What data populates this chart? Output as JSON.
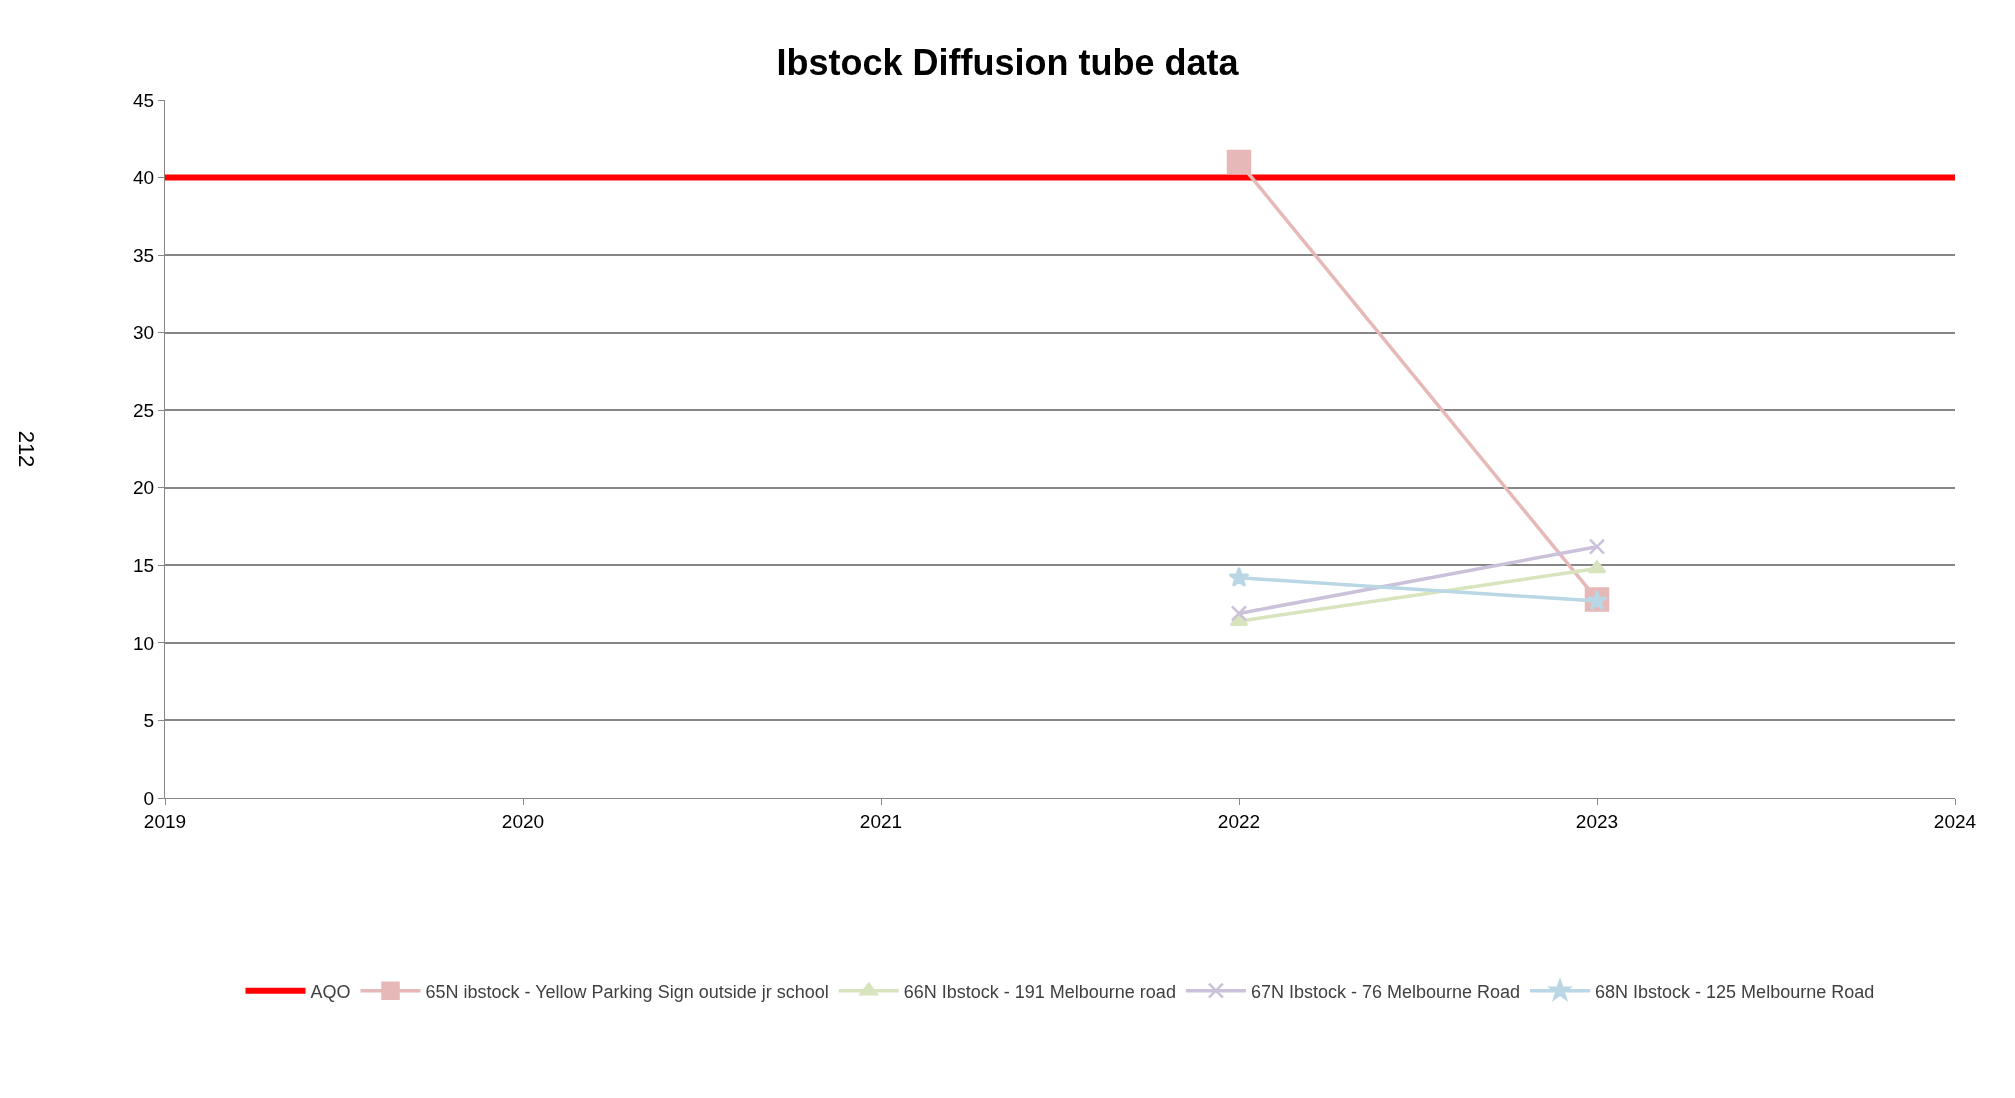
{
  "chart_data": {
    "type": "line",
    "title": "Ibstock Diffusion tube data",
    "x": [
      2019,
      2020,
      2021,
      2022,
      2023,
      2024
    ],
    "series": [
      {
        "name": "AQO",
        "color": "#ff0000",
        "marker": "none",
        "values": [
          40,
          40,
          40,
          40,
          40,
          40
        ]
      },
      {
        "name": "65N ibstock - Yellow Parking Sign outside jr school",
        "color": "#e6b9b8",
        "marker": "square",
        "values": [
          null,
          null,
          null,
          41,
          12.8,
          null
        ]
      },
      {
        "name": "66N Ibstock - 191 Melbourne road",
        "color": "#d7e4bd",
        "marker": "triangle",
        "values": [
          null,
          null,
          null,
          11.4,
          14.8,
          null
        ]
      },
      {
        "name": "67N Ibstock - 76 Melbourne Road",
        "color": "#ccc1da",
        "marker": "cross",
        "values": [
          null,
          null,
          null,
          11.9,
          16.2,
          null
        ]
      },
      {
        "name": "68N Ibstock - 125 Melbourne Road",
        "color": "#b9d7e4",
        "marker": "star",
        "values": [
          null,
          null,
          null,
          14.2,
          12.7,
          null
        ]
      }
    ],
    "xlim": [
      2019,
      2024
    ],
    "xticks": [
      2019,
      2020,
      2021,
      2022,
      2023,
      2024
    ],
    "ylim": [
      0,
      45
    ],
    "yticks": [
      0,
      5,
      10,
      15,
      20,
      25,
      30,
      35,
      40,
      45
    ],
    "grid": "y",
    "legend": "bottom",
    "line_style": "solid",
    "annotations": [
      "212"
    ]
  }
}
